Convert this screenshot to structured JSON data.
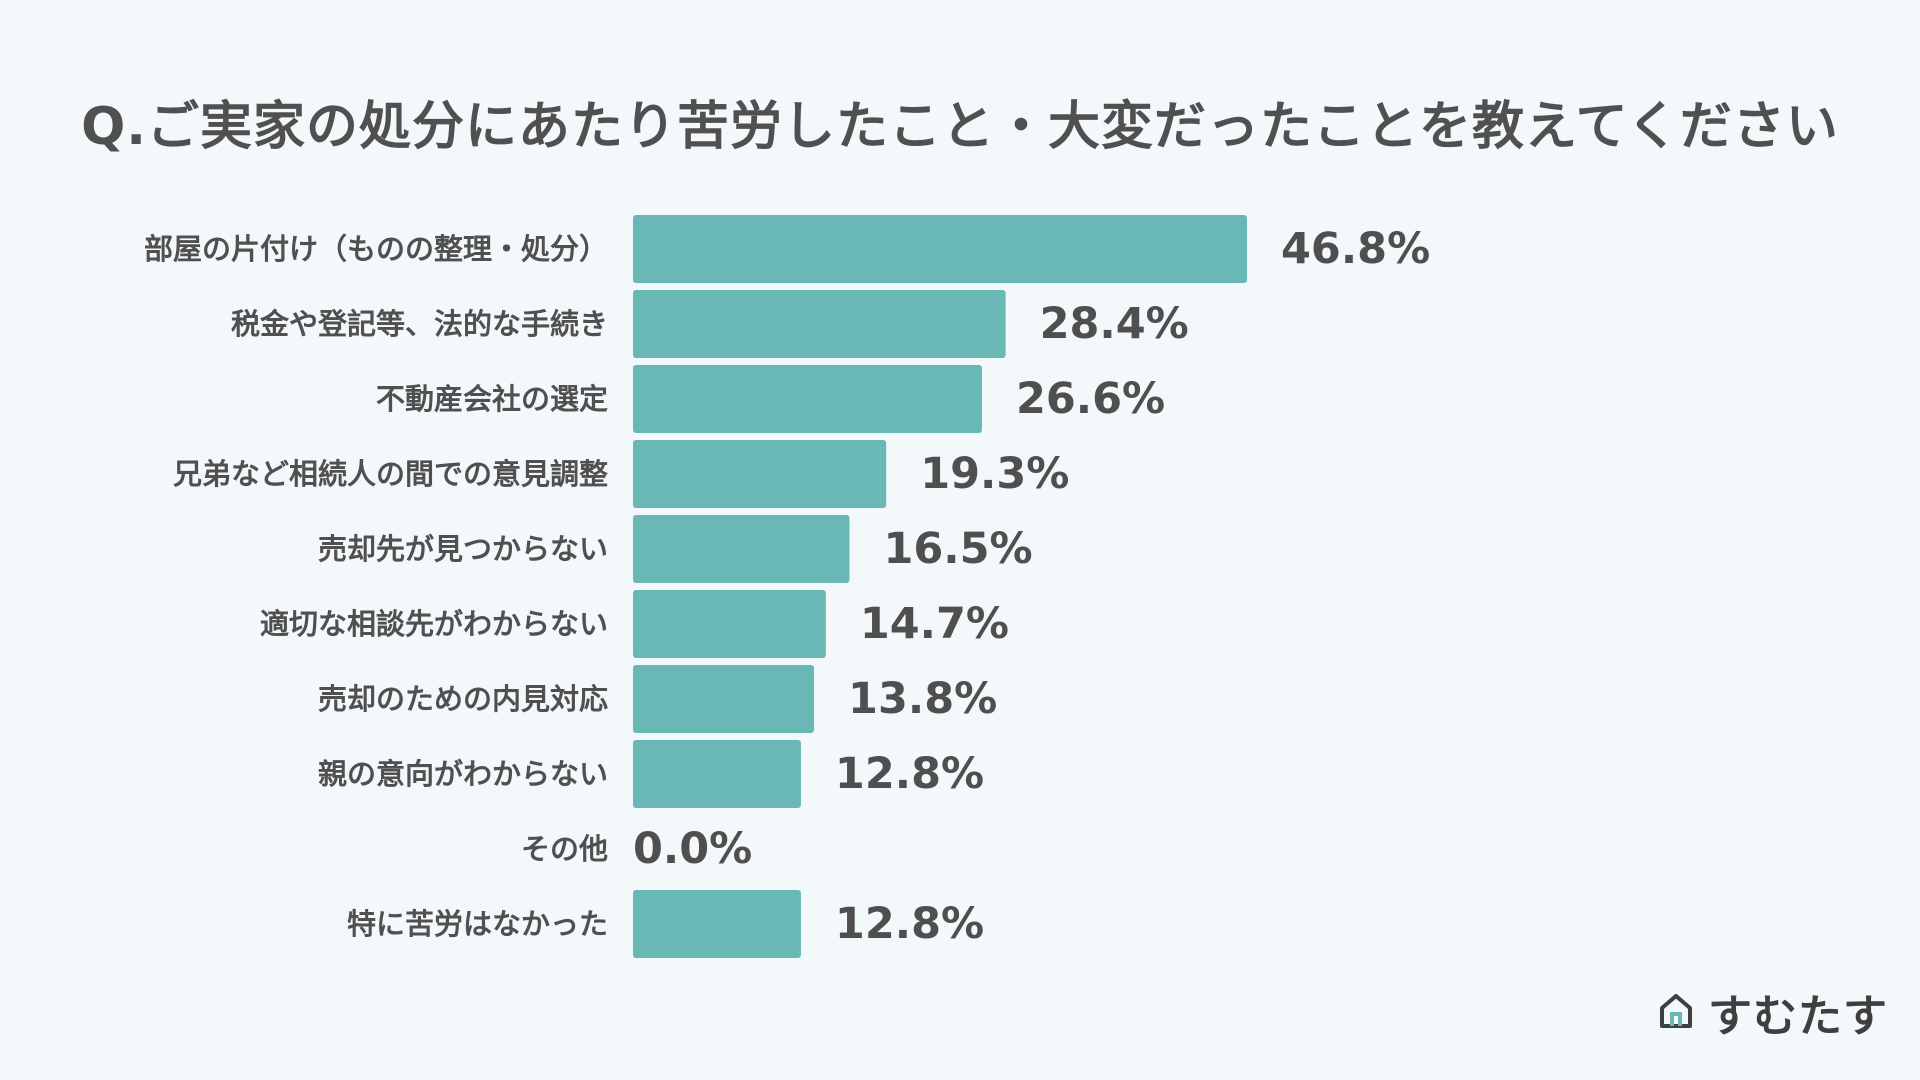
{
  "chart_data": {
    "type": "bar",
    "orientation": "horizontal",
    "title": "Q.ご実家の処分にあたり苦労したこと・大変だったことを教えてください",
    "categories": [
      "部屋の片付け（ものの整理・処分）",
      "税金や登記等、法的な手続き",
      "不動産会社の選定",
      "兄弟など相続人の間での意見調整",
      "売却先が見つからない",
      "適切な相談先がわからない",
      "売却のための内見対応",
      "親の意向がわからない",
      "その他",
      "特に苦労はなかった"
    ],
    "values": [
      46.8,
      28.4,
      26.6,
      19.3,
      16.5,
      14.7,
      13.8,
      12.8,
      0.0,
      12.8
    ],
    "value_labels": [
      "46.8%",
      "28.4%",
      "26.6%",
      "19.3%",
      "16.5%",
      "14.7%",
      "13.8%",
      "12.8%",
      "0.0%",
      "12.8%"
    ],
    "unit": "%",
    "bar_color": "#69b8b6",
    "grid": false,
    "legend": "none"
  },
  "brand": {
    "name": "すむたす",
    "logo_icon": "house-logo-icon",
    "accent": "#69b8b6"
  }
}
